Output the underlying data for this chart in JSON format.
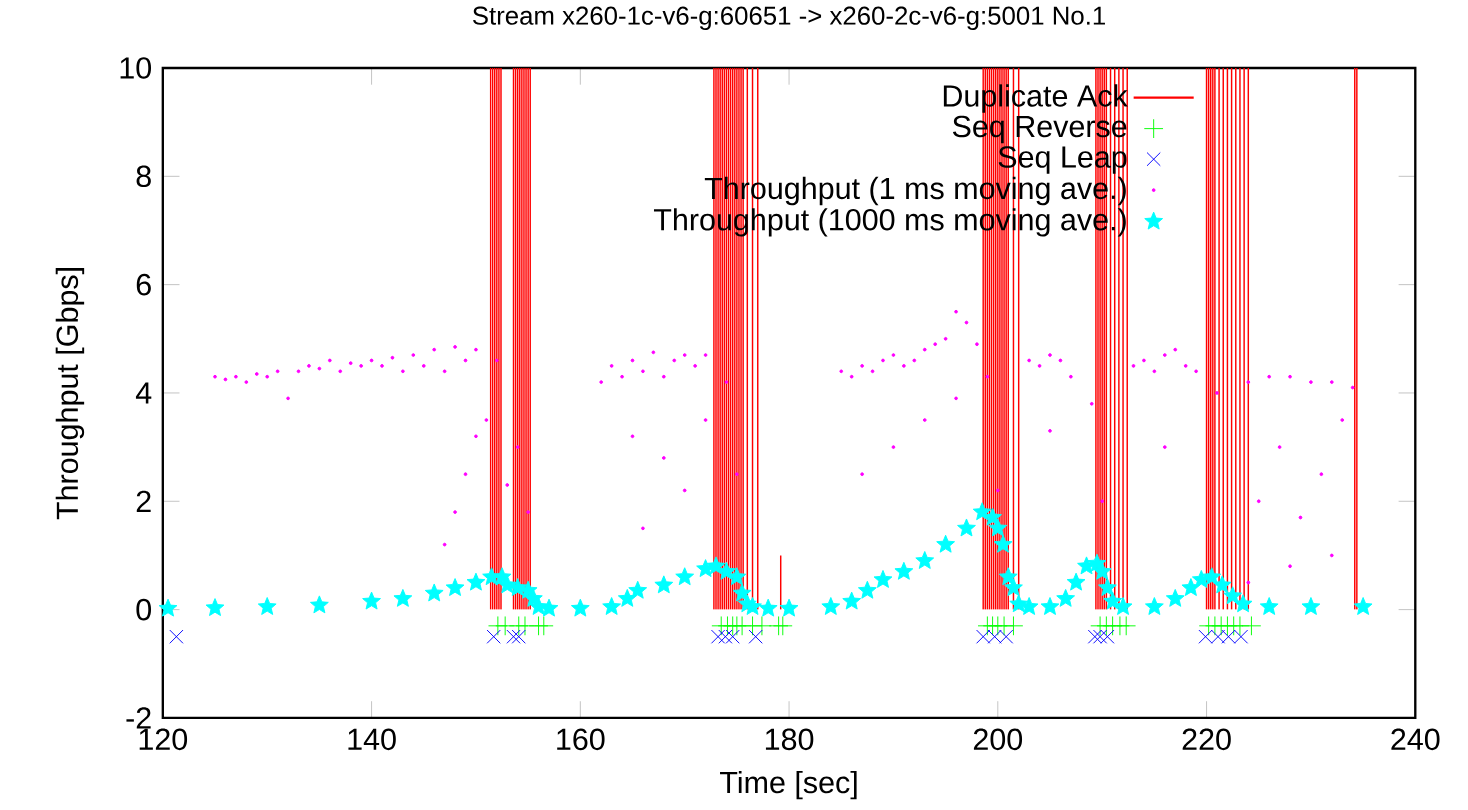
{
  "chart_data": {
    "type": "scatter",
    "title": "Stream x260-1c-v6-g:60651 -> x260-2c-v6-g:5001 No.1",
    "xlabel": "Time [sec]",
    "ylabel": "Throughput [Gbps]",
    "xlim": [
      120,
      240
    ],
    "ylim": [
      -2,
      10
    ],
    "xticks": [
      120,
      140,
      160,
      180,
      200,
      220,
      240
    ],
    "yticks": [
      -2,
      0,
      2,
      4,
      6,
      8,
      10
    ],
    "legend": "top right",
    "series": [
      {
        "name": "Duplicate Ack",
        "type": "bar",
        "color": "#ff0000",
        "x": [
          151.4,
          151.6,
          151.8,
          152.0,
          152.2,
          152.4,
          153.6,
          153.8,
          154.0,
          154.2,
          154.4,
          154.6,
          154.8,
          155.0,
          155.2,
          172.8,
          173.0,
          173.2,
          173.4,
          173.6,
          173.8,
          174.0,
          174.2,
          174.4,
          174.6,
          174.8,
          175.0,
          175.2,
          175.4,
          175.6,
          176.0,
          176.5,
          177.0,
          179.2,
          198.6,
          198.8,
          199.0,
          199.2,
          199.4,
          199.6,
          199.8,
          200.0,
          200.2,
          200.4,
          200.6,
          200.8,
          201.0,
          201.5,
          202.0,
          209.4,
          209.6,
          209.8,
          210.0,
          210.2,
          210.4,
          210.8,
          211.2,
          211.6,
          212.0,
          212.4,
          220.0,
          220.2,
          220.4,
          220.6,
          220.8,
          221.2,
          221.6,
          222.0,
          222.4,
          222.8,
          223.2,
          223.6,
          224.0,
          234.2,
          234.4
        ],
        "values": [
          10,
          10,
          10,
          10,
          10,
          10,
          10,
          10,
          10,
          10,
          10,
          10,
          10,
          10,
          10,
          10,
          10,
          10,
          10,
          10,
          10,
          10,
          10,
          10,
          10,
          10,
          10,
          10,
          10,
          10,
          10,
          10,
          10,
          1,
          10,
          10,
          10,
          10,
          10,
          10,
          10,
          10,
          10,
          10,
          10,
          10,
          10,
          10,
          10,
          10,
          10,
          10,
          10,
          10,
          10,
          10,
          10,
          10,
          10,
          10,
          10,
          10,
          10,
          10,
          10,
          10,
          10,
          10,
          10,
          10,
          10,
          10,
          10,
          10,
          10
        ]
      },
      {
        "name": "Seq Reverse",
        "type": "scatter",
        "marker": "plus",
        "color": "#00ff00",
        "x": [
          152.1,
          152.8,
          154.1,
          154.7,
          156.0,
          156.5,
          173.5,
          174.1,
          174.6,
          175.0,
          175.5,
          176.5,
          177.4,
          179.0,
          179.4,
          199.0,
          199.5,
          200.0,
          200.6,
          201.5,
          209.8,
          210.4,
          211.0,
          211.7,
          212.3,
          220.2,
          220.8,
          221.4,
          222.0,
          222.6,
          223.2,
          224.3
        ],
        "values": [
          -0.3,
          -0.3,
          -0.3,
          -0.3,
          -0.3,
          -0.3,
          -0.3,
          -0.3,
          -0.3,
          -0.3,
          -0.3,
          -0.3,
          -0.3,
          -0.3,
          -0.3,
          -0.3,
          -0.3,
          -0.3,
          -0.3,
          -0.3,
          -0.3,
          -0.3,
          -0.3,
          -0.3,
          -0.3,
          -0.3,
          -0.3,
          -0.3,
          -0.3,
          -0.3,
          -0.3,
          -0.3
        ]
      },
      {
        "name": "Seq Leap",
        "type": "scatter",
        "marker": "cross",
        "color": "#0000ff",
        "x": [
          121.3,
          151.7,
          153.6,
          154.1,
          173.2,
          173.9,
          174.6,
          176.8,
          198.6,
          199.7,
          200.8,
          209.3,
          209.8,
          210.5,
          219.9,
          221.1,
          222.1,
          223.3
        ],
        "values": [
          -0.5,
          -0.5,
          -0.5,
          -0.5,
          -0.5,
          -0.5,
          -0.5,
          -0.5,
          -0.5,
          -0.5,
          -0.5,
          -0.5,
          -0.5,
          -0.5,
          -0.5,
          -0.5,
          -0.5,
          -0.5
        ]
      },
      {
        "name": "Throughput (1 ms moving ave.)",
        "type": "scatter",
        "marker": "circle",
        "color": "#ff00ff",
        "x": [
          125,
          126,
          127,
          128,
          129,
          130,
          131,
          132,
          133,
          134,
          135,
          136,
          137,
          138,
          139,
          140,
          141,
          142,
          143,
          144,
          145,
          146,
          147,
          148,
          149,
          150,
          147,
          148,
          149,
          150,
          151,
          152,
          153,
          154,
          155,
          162,
          163,
          164,
          165,
          166,
          167,
          168,
          169,
          170,
          171,
          172,
          165,
          166,
          168,
          170,
          172,
          174,
          175,
          185,
          186,
          187,
          188,
          189,
          190,
          191,
          192,
          193,
          194,
          195,
          196,
          197,
          198,
          187,
          190,
          193,
          196,
          199,
          200,
          203,
          204,
          205,
          206,
          207,
          209,
          210,
          205,
          213,
          214,
          215,
          216,
          217,
          218,
          219,
          221,
          216,
          224,
          226,
          228,
          230,
          232,
          234,
          225,
          227,
          229,
          231,
          233,
          224,
          228,
          232
        ],
        "values": [
          4.3,
          4.25,
          4.3,
          4.2,
          4.35,
          4.3,
          4.4,
          3.9,
          4.4,
          4.5,
          4.45,
          4.6,
          4.4,
          4.55,
          4.5,
          4.6,
          4.5,
          4.65,
          4.4,
          4.7,
          4.5,
          4.8,
          4.4,
          4.85,
          4.6,
          4.8,
          1.2,
          1.8,
          2.5,
          3.2,
          3.5,
          4.6,
          2.3,
          3.0,
          1.8,
          4.2,
          4.5,
          4.3,
          4.6,
          4.4,
          4.75,
          4.3,
          4.6,
          4.7,
          4.5,
          4.7,
          3.2,
          1.5,
          2.8,
          2.2,
          3.5,
          4.2,
          2.5,
          4.4,
          4.3,
          4.5,
          4.4,
          4.6,
          4.7,
          4.5,
          4.6,
          4.8,
          4.9,
          5.0,
          5.5,
          5.3,
          4.9,
          2.5,
          3.0,
          3.5,
          3.9,
          4.3,
          2.2,
          4.6,
          4.5,
          4.7,
          4.6,
          4.3,
          3.8,
          2.0,
          3.3,
          4.5,
          4.6,
          4.4,
          4.7,
          4.8,
          4.5,
          4.4,
          4.0,
          3.0,
          4.2,
          4.3,
          4.3,
          4.2,
          4.2,
          4.1,
          2.0,
          3.0,
          1.7,
          2.5,
          3.5,
          0.5,
          0.8,
          1.0
        ]
      },
      {
        "name": "Throughput (1000 ms moving ave.)",
        "marker": "star",
        "color": "#00ffff",
        "x": [
          120.5,
          125,
          130,
          135,
          140,
          143,
          146,
          148,
          150,
          151.5,
          152.5,
          153,
          154,
          155,
          155.5,
          156,
          157,
          160,
          163,
          164.5,
          165.5,
          168,
          170,
          172,
          173,
          174,
          175,
          175.5,
          176,
          176.5,
          178,
          180,
          184,
          186,
          187.5,
          189,
          191,
          193,
          195,
          197,
          198.5,
          199.5,
          200,
          200.5,
          201,
          201.5,
          202,
          203,
          205,
          206.5,
          207.5,
          208.5,
          209.5,
          210,
          210.5,
          211,
          212,
          215,
          217,
          218.5,
          219.5,
          220.5,
          221.5,
          222.5,
          223.5,
          226,
          230,
          235
        ],
        "values": [
          0.02,
          0.03,
          0.05,
          0.08,
          0.15,
          0.2,
          0.3,
          0.4,
          0.5,
          0.6,
          0.6,
          0.45,
          0.4,
          0.35,
          0.2,
          0.05,
          0.02,
          0.02,
          0.05,
          0.2,
          0.35,
          0.45,
          0.6,
          0.75,
          0.8,
          0.7,
          0.6,
          0.3,
          0.1,
          0.05,
          0.02,
          0.02,
          0.05,
          0.15,
          0.35,
          0.55,
          0.7,
          0.9,
          1.2,
          1.5,
          1.8,
          1.7,
          1.5,
          1.2,
          0.6,
          0.4,
          0.1,
          0.05,
          0.05,
          0.2,
          0.5,
          0.8,
          0.85,
          0.7,
          0.4,
          0.15,
          0.05,
          0.05,
          0.2,
          0.4,
          0.55,
          0.6,
          0.45,
          0.25,
          0.1,
          0.05,
          0.05,
          0.05
        ]
      }
    ]
  }
}
